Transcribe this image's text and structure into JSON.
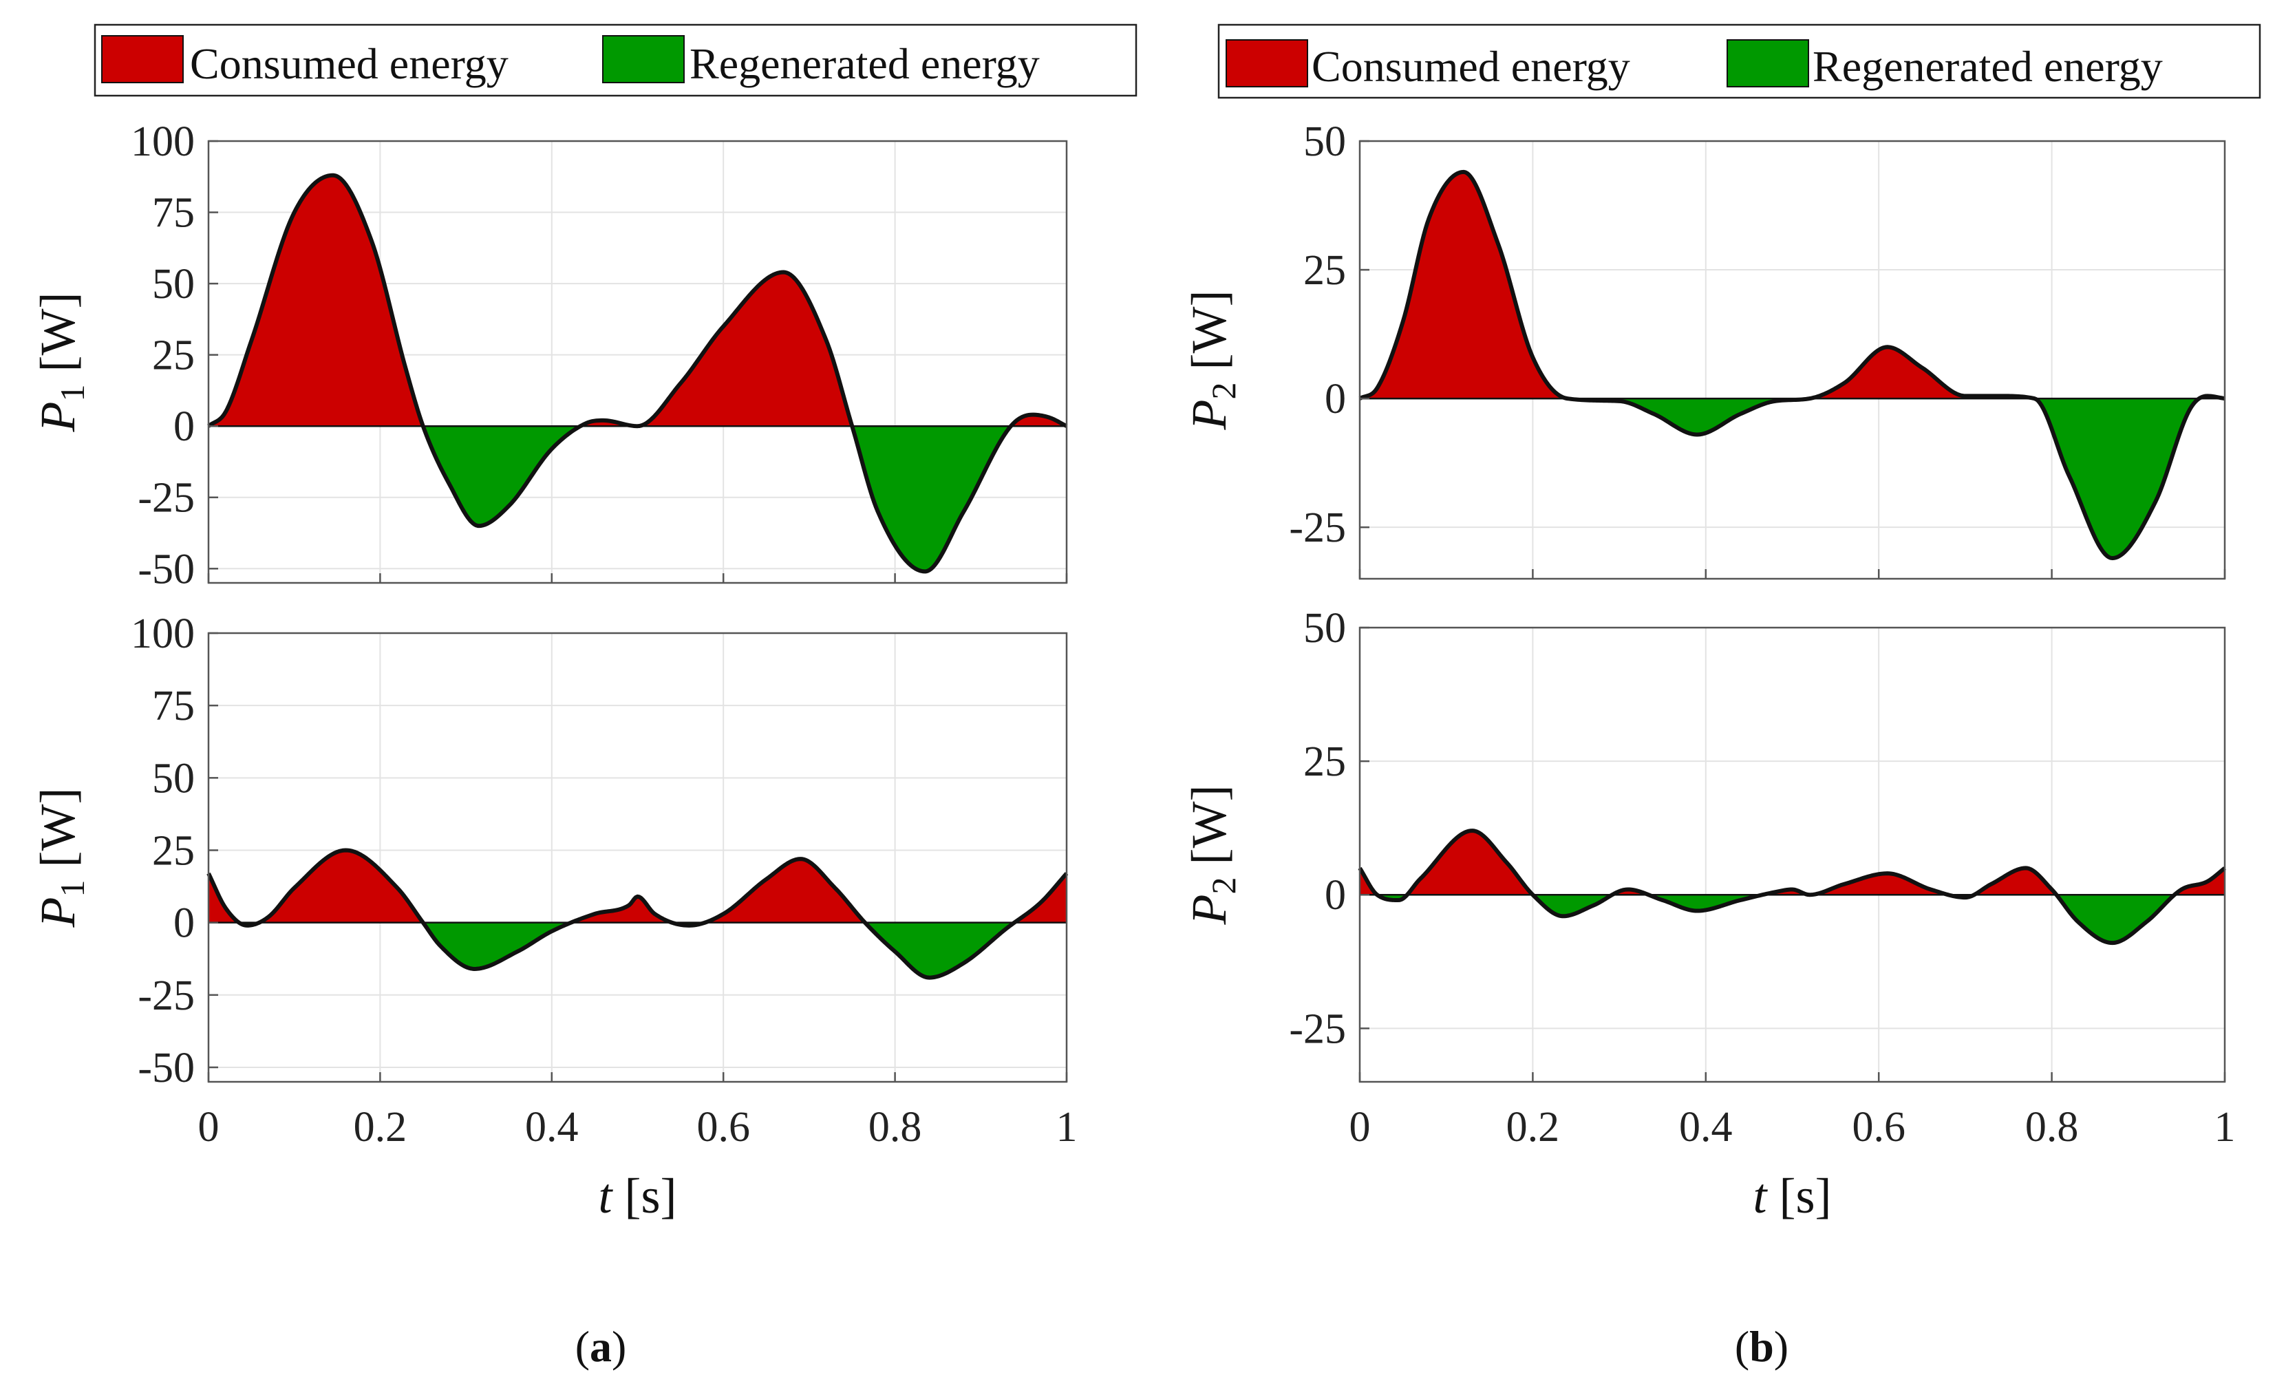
{
  "figure": {
    "panels": [
      {
        "id": "a",
        "caption_letter": "a"
      },
      {
        "id": "b",
        "caption_letter": "b"
      }
    ]
  },
  "legend": {
    "consumed_label": "Consumed energy",
    "regenerated_label": "Regenerated energy"
  },
  "colors": {
    "consumed": "#cc0000",
    "regenerated": "#009900",
    "curve": "#111111",
    "grid": "#e3e3e3",
    "axes": "#555555"
  },
  "chart_data": [
    {
      "type": "area",
      "panel": "a",
      "position": "top",
      "xlabel": "",
      "ylabel_symbol": "P",
      "ylabel_subscript": "1",
      "ylabel_unit": "[W]",
      "xlim": [
        0,
        1
      ],
      "ylim": [
        -55,
        100
      ],
      "yticks": [
        100,
        75,
        50,
        25,
        0,
        -25,
        -50
      ],
      "ytick_labels": [
        "100",
        "75",
        "50",
        "25",
        "0",
        "-25",
        "-50"
      ],
      "xticks": [
        0,
        0.2,
        0.4,
        0.6,
        0.8,
        1
      ],
      "xtick_labels": [],
      "grid": true,
      "series": [
        {
          "name": "P1",
          "x": [
            0,
            0.02,
            0.05,
            0.1,
            0.145,
            0.19,
            0.23,
            0.25,
            0.28,
            0.315,
            0.35,
            0.4,
            0.44,
            0.46,
            0.5,
            0.55,
            0.6,
            0.67,
            0.72,
            0.75,
            0.78,
            0.835,
            0.88,
            0.935,
            0.96,
            0.98,
            1
          ],
          "y": [
            0,
            5,
            30,
            75,
            88,
            65,
            20,
            0,
            -20,
            -35,
            -28,
            -8,
            1,
            2,
            0,
            15,
            35,
            54,
            30,
            0,
            -30,
            -51,
            -30,
            0,
            4,
            3,
            0
          ]
        }
      ]
    },
    {
      "type": "area",
      "panel": "a",
      "position": "bottom",
      "xlabel_symbol": "t",
      "xlabel_unit": "[s]",
      "ylabel_symbol": "P",
      "ylabel_subscript": "1",
      "ylabel_unit": "[W]",
      "xlim": [
        0,
        1
      ],
      "ylim": [
        -55,
        100
      ],
      "yticks": [
        100,
        75,
        50,
        25,
        0,
        -25,
        -50
      ],
      "ytick_labels": [
        "100",
        "75",
        "50",
        "25",
        "0",
        "-25",
        "-50"
      ],
      "xticks": [
        0,
        0.2,
        0.4,
        0.6,
        0.8,
        1
      ],
      "xtick_labels": [
        "0",
        "0.2",
        "0.4",
        "0.6",
        "0.8",
        "1"
      ],
      "grid": true,
      "series": [
        {
          "name": "P1",
          "x": [
            0,
            0.02,
            0.045,
            0.07,
            0.1,
            0.16,
            0.22,
            0.25,
            0.27,
            0.31,
            0.36,
            0.4,
            0.45,
            0.49,
            0.5,
            0.52,
            0.56,
            0.6,
            0.65,
            0.69,
            0.73,
            0.765,
            0.8,
            0.84,
            0.88,
            0.93,
            0.97,
            1
          ],
          "y": [
            17,
            5,
            -1,
            2,
            12,
            25,
            12,
            0,
            -8,
            -16,
            -10,
            -3,
            3,
            6,
            9,
            3,
            -1,
            3,
            15,
            22,
            12,
            0,
            -10,
            -19,
            -14,
            -2,
            7,
            17
          ]
        }
      ]
    },
    {
      "type": "area",
      "panel": "b",
      "position": "top",
      "xlabel": "",
      "ylabel_symbol": "P",
      "ylabel_subscript": "2",
      "ylabel_unit": "[W]",
      "xlim": [
        0,
        1
      ],
      "ylim": [
        -35,
        50
      ],
      "yticks": [
        50,
        25,
        0,
        -25
      ],
      "ytick_labels": [
        "50",
        "25",
        "0",
        "-25"
      ],
      "xticks": [
        0,
        0.2,
        0.4,
        0.6,
        0.8,
        1
      ],
      "xtick_labels": [],
      "grid": true,
      "series": [
        {
          "name": "P2",
          "x": [
            0,
            0.02,
            0.05,
            0.08,
            0.12,
            0.16,
            0.2,
            0.24,
            0.3,
            0.34,
            0.39,
            0.44,
            0.48,
            0.52,
            0.56,
            0.61,
            0.65,
            0.7,
            0.74,
            0.78,
            0.82,
            0.87,
            0.92,
            0.96,
            0.98,
            1
          ],
          "y": [
            0,
            2,
            15,
            35,
            44,
            30,
            8,
            0,
            -0.5,
            -3,
            -7,
            -3,
            -0.5,
            0,
            3,
            10,
            6,
            0.5,
            0.5,
            0,
            -15,
            -31,
            -20,
            -2,
            0.5,
            0
          ]
        }
      ]
    },
    {
      "type": "area",
      "panel": "b",
      "position": "bottom",
      "xlabel_symbol": "t",
      "xlabel_unit": "[s]",
      "ylabel_symbol": "P",
      "ylabel_subscript": "2",
      "ylabel_unit": "[W]",
      "xlim": [
        0,
        1
      ],
      "ylim": [
        -35,
        50
      ],
      "yticks": [
        50,
        25,
        0,
        -25
      ],
      "ytick_labels": [
        "50",
        "25",
        "0",
        "-25"
      ],
      "xticks": [
        0,
        0.2,
        0.4,
        0.6,
        0.8,
        1
      ],
      "xtick_labels": [
        "0",
        "0.2",
        "0.4",
        "0.6",
        "0.8",
        "1"
      ],
      "grid": true,
      "series": [
        {
          "name": "P2",
          "x": [
            0,
            0.02,
            0.045,
            0.07,
            0.13,
            0.17,
            0.2,
            0.235,
            0.27,
            0.31,
            0.35,
            0.39,
            0.44,
            0.48,
            0.5,
            0.52,
            0.56,
            0.61,
            0.66,
            0.7,
            0.73,
            0.77,
            0.8,
            0.83,
            0.87,
            0.91,
            0.95,
            0.98,
            1
          ],
          "y": [
            5,
            0,
            -1,
            3,
            12,
            6,
            0,
            -4,
            -2,
            1,
            -1,
            -3,
            -1,
            0.5,
            1,
            0,
            2,
            4,
            1,
            -0.5,
            2,
            5,
            1,
            -5,
            -9,
            -5,
            1,
            2.5,
            5
          ]
        }
      ]
    }
  ]
}
